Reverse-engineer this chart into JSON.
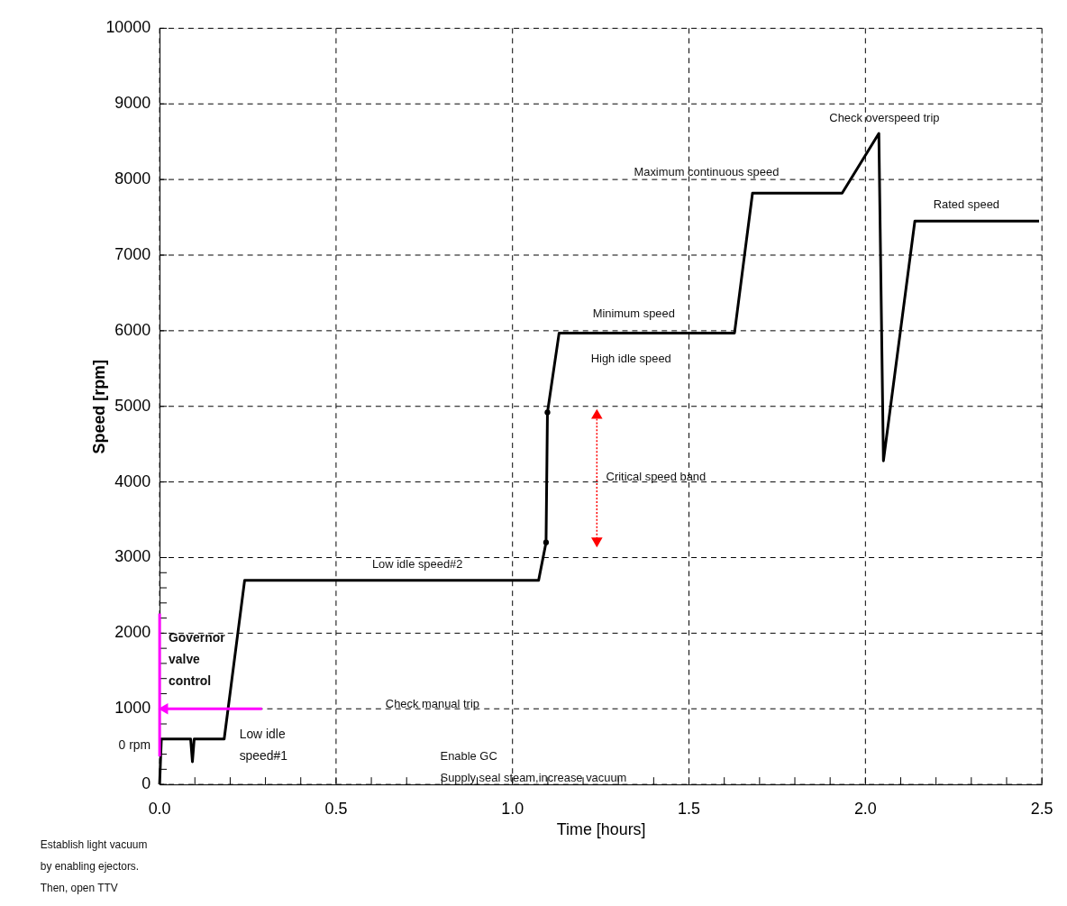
{
  "chart_data": {
    "type": "line",
    "xlabel": "Time [hours]",
    "ylabel": "Speed [rpm]",
    "xlim": [
      0,
      2.5
    ],
    "ylim": [
      0,
      10000
    ],
    "xticks": [
      {
        "value": 0,
        "label": "0.0"
      },
      {
        "value": 0.1,
        "label": null
      },
      {
        "value": 0.2,
        "label": null
      },
      {
        "value": 0.3,
        "label": null
      },
      {
        "value": 0.4,
        "label": null
      },
      {
        "value": 0.5,
        "label": "0.5"
      },
      {
        "value": 0.6,
        "label": null
      },
      {
        "value": 0.7,
        "label": null
      },
      {
        "value": 0.8,
        "label": null
      },
      {
        "value": 0.9,
        "label": null
      },
      {
        "value": 1.0,
        "label": "1.0"
      },
      {
        "value": 1.1,
        "label": null
      },
      {
        "value": 1.2,
        "label": null
      },
      {
        "value": 1.3,
        "label": null
      },
      {
        "value": 1.4,
        "label": null
      },
      {
        "value": 1.5,
        "label": "1.5"
      },
      {
        "value": 1.6,
        "label": null
      },
      {
        "value": 1.7,
        "label": null
      },
      {
        "value": 1.8,
        "label": null
      },
      {
        "value": 1.9,
        "label": null
      },
      {
        "value": 2.0,
        "label": "2.0"
      },
      {
        "value": 2.1,
        "label": null
      },
      {
        "value": 2.2,
        "label": null
      },
      {
        "value": 2.3,
        "label": null
      },
      {
        "value": 2.4,
        "label": null
      },
      {
        "value": 2.5,
        "label": "2.5"
      }
    ],
    "yticks": [
      0,
      {
        "value": 200,
        "label": null
      },
      {
        "value": 400,
        "label": null
      },
      {
        "value": 600,
        "label": null
      },
      {
        "value": 800,
        "label": null
      },
      1000,
      {
        "value": 1200,
        "label": null
      },
      {
        "value": 1400,
        "label": null
      },
      {
        "value": 1600,
        "label": null
      },
      {
        "value": 1800,
        "label": null
      },
      2000,
      {
        "value": 2200,
        "label": null
      },
      {
        "value": 2400,
        "label": null
      },
      {
        "value": 2600,
        "label": null
      },
      {
        "value": 2800,
        "label": null
      },
      3000,
      4000,
      5000,
      6000,
      7000,
      8000,
      9000,
      10000
    ],
    "grid": true,
    "series": [
      {
        "color": "#000000",
        "line_style": "solid",
        "x": [
          0,
          0.005,
          0.088,
          0.093,
          0.098,
          0.183,
          0.241,
          1.074,
          1.095,
          1.099,
          1.132,
          1.629,
          1.68,
          1.934,
          2.038,
          2.051,
          2.14,
          2.492
        ],
        "values": [
          0,
          600,
          600,
          300,
          600,
          600,
          2700,
          2700,
          3200,
          4920,
          5970,
          5970,
          7820,
          7820,
          8610,
          4280,
          7450,
          7450
        ]
      },
      {
        "type": "scatter",
        "color": "#000000",
        "marker": "circle",
        "x": [
          1.095,
          1.099
        ],
        "values": [
          3200,
          4920
        ]
      },
      {
        "color": "#ff00ff",
        "line_style": "solid",
        "x": [
          0,
          0
        ],
        "values": [
          370,
          2260
        ]
      },
      {
        "color": "#ff00ff",
        "line_style": "solid",
        "marker": "triangle",
        "x": [
          0.29,
          0.01
        ],
        "values": [
          1000,
          1000
        ]
      },
      {
        "color": "#ff0000",
        "line_style": "dotted",
        "marker": "triangle",
        "x": [
          1.239,
          1.239
        ],
        "values": [
          3200,
          4900
        ]
      }
    ],
    "annotations": [
      "Low idle speed#2",
      "Minimum speed",
      "High idle speed",
      "Critical speed band",
      "Maximum continuous speed",
      "Check overspeed trip",
      "Rated speed",
      "Low idle\nspeed#1",
      "Check manual trip",
      "Enable GC\nSupply seal steam,increase vacuum",
      "Governor\nvalve\ncontrol",
      "0 rpm",
      "Establish light vacuum\nby enabling ejectors.\nThen, open TTV"
    ]
  }
}
